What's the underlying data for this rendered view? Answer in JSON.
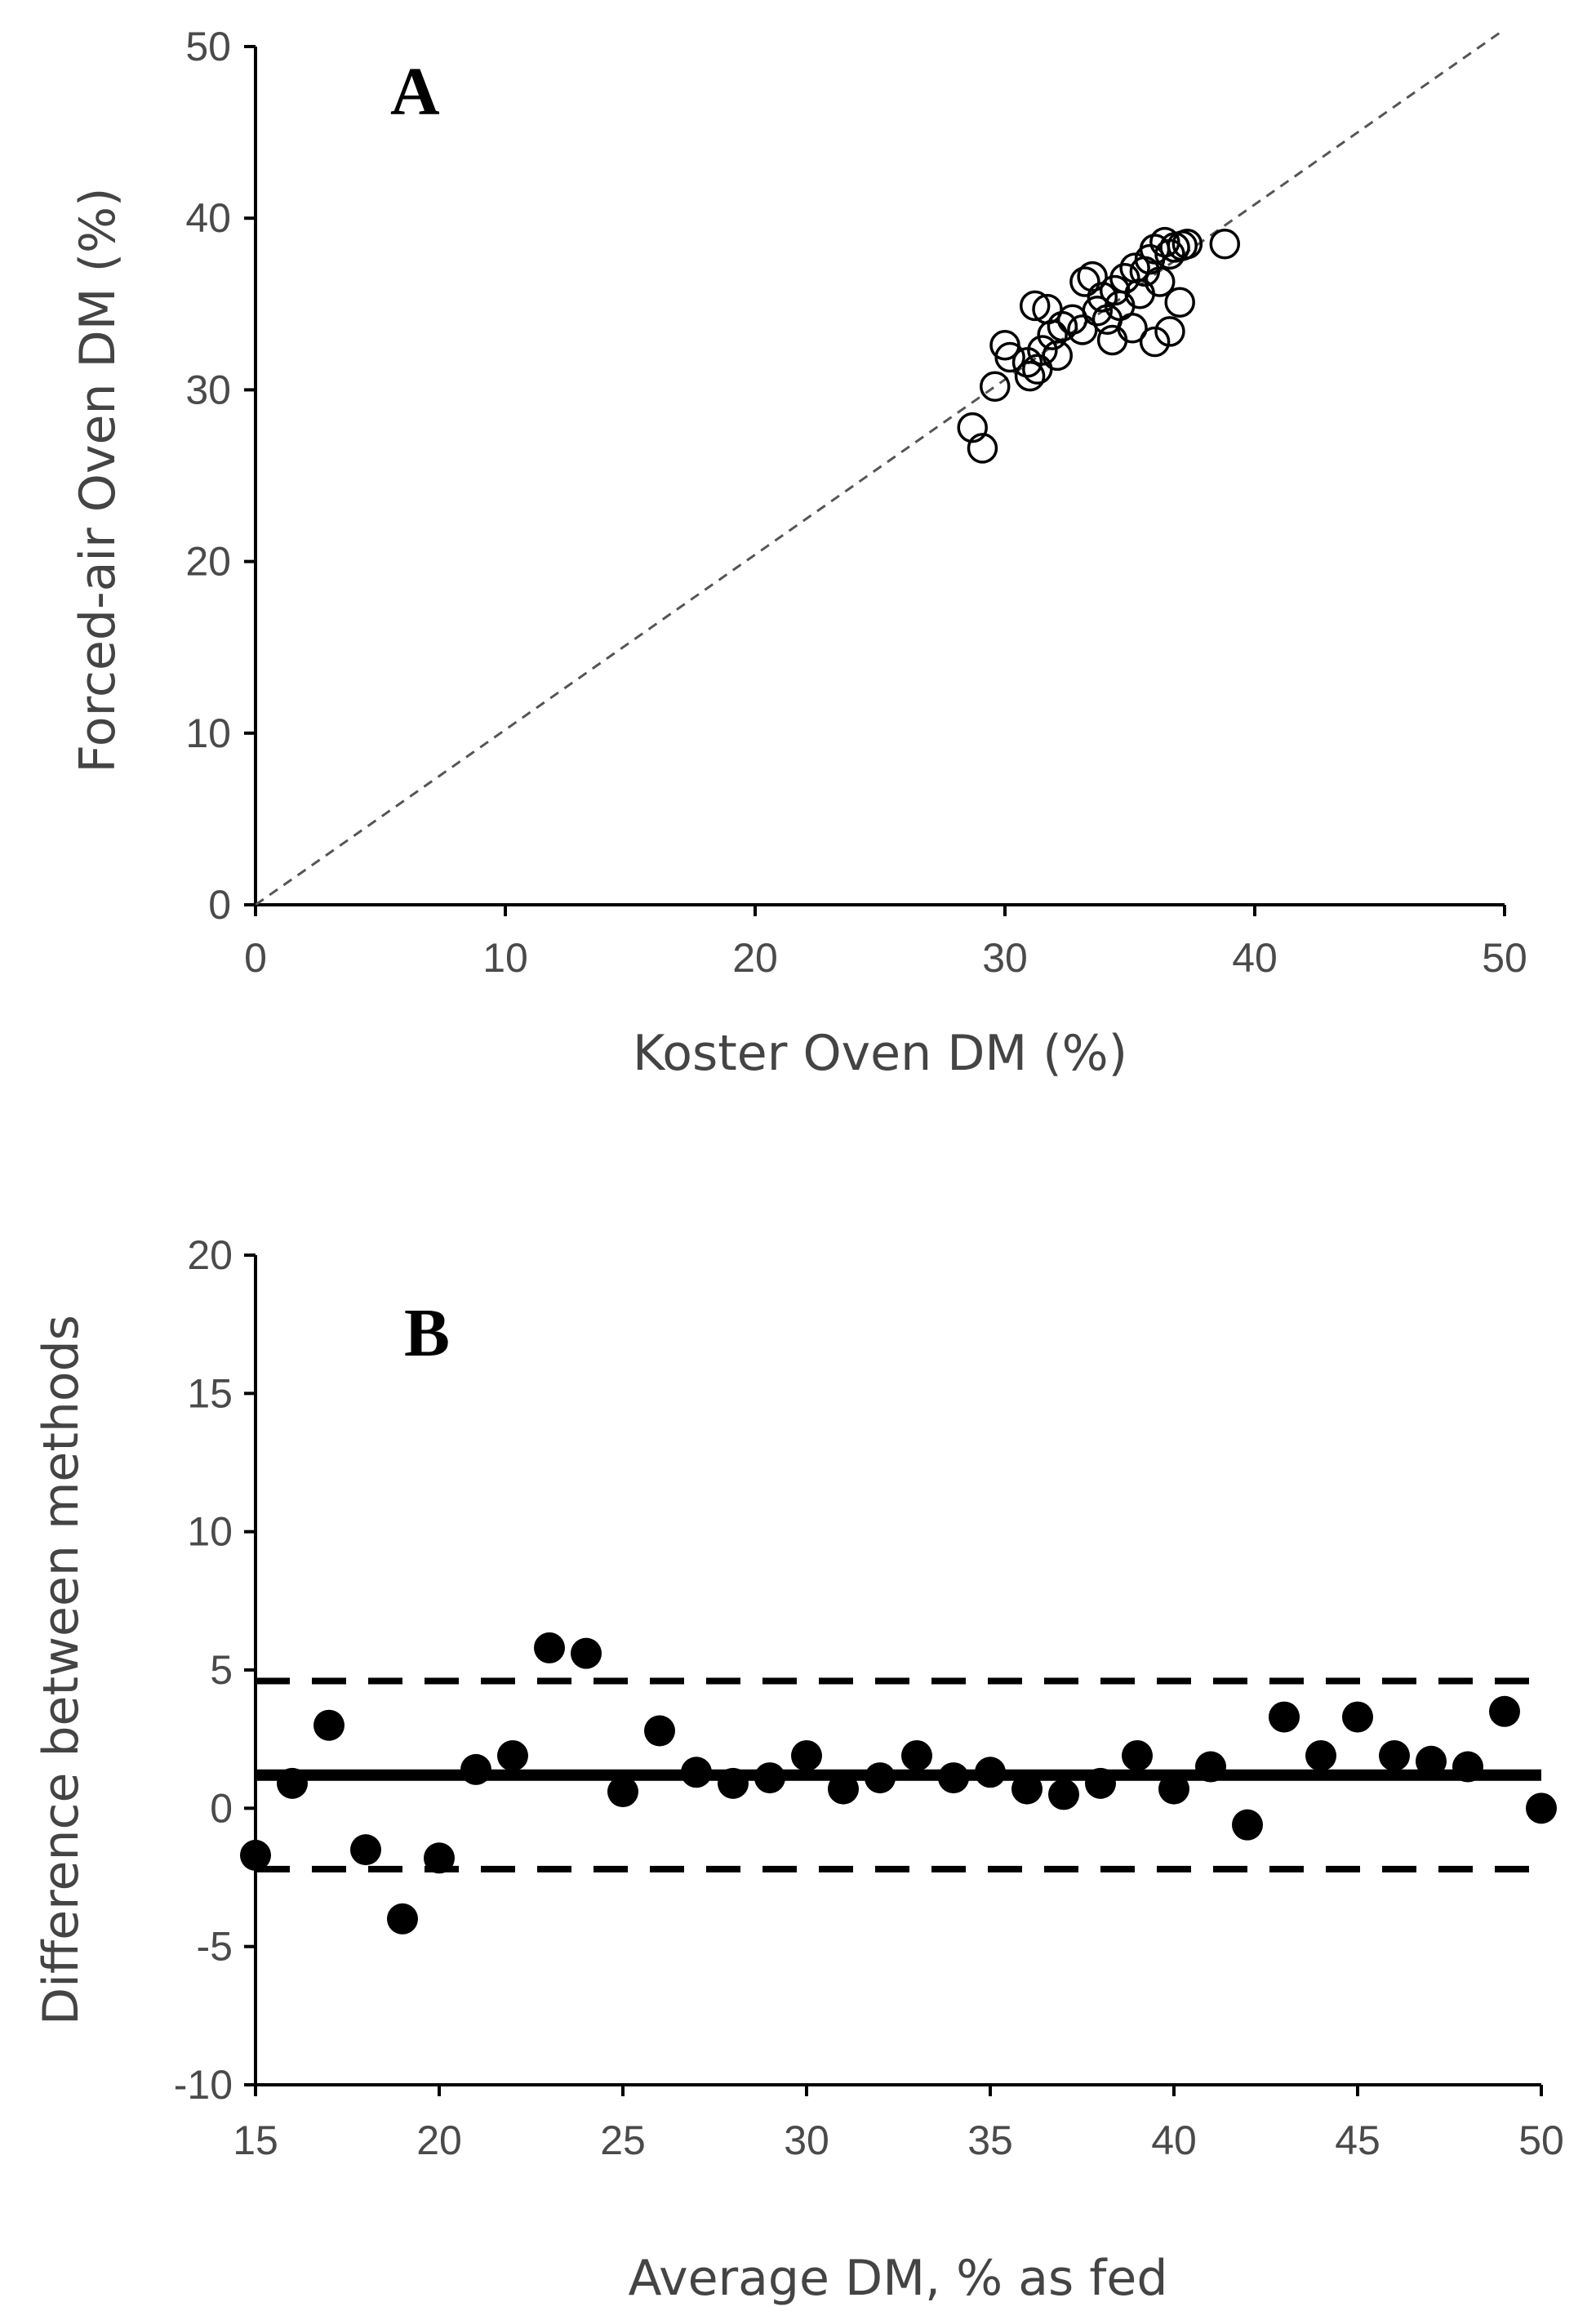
{
  "chart_data": [
    {
      "type": "scatter",
      "panel_label": "A",
      "xlabel": "Koster Oven DM (%)",
      "ylabel": "Forced-air Oven DM (%)",
      "xlim": [
        0,
        50
      ],
      "ylim": [
        0,
        50
      ],
      "xticks": [
        "0",
        "10",
        "20",
        "30",
        "40",
        "50"
      ],
      "yticks": [
        "0",
        "10",
        "20",
        "30",
        "40",
        "50"
      ],
      "marker": "open-circle",
      "reference_line": {
        "label": "1:1 line",
        "style": "dashed",
        "from": [
          0,
          0
        ],
        "to": [
          50,
          51
        ]
      },
      "points": [
        [
          28.7,
          27.8
        ],
        [
          29.1,
          26.6
        ],
        [
          29.6,
          30.2
        ],
        [
          30.0,
          32.6
        ],
        [
          30.2,
          31.9
        ],
        [
          30.9,
          31.6
        ],
        [
          31.0,
          30.8
        ],
        [
          31.2,
          34.9
        ],
        [
          31.3,
          31.2
        ],
        [
          31.5,
          32.3
        ],
        [
          31.7,
          34.7
        ],
        [
          31.9,
          33.2
        ],
        [
          32.1,
          32.0
        ],
        [
          32.3,
          33.7
        ],
        [
          32.7,
          34.1
        ],
        [
          33.1,
          33.5
        ],
        [
          33.2,
          36.3
        ],
        [
          33.5,
          36.6
        ],
        [
          33.7,
          34.6
        ],
        [
          33.9,
          35.4
        ],
        [
          34.1,
          34.1
        ],
        [
          34.3,
          32.9
        ],
        [
          34.4,
          35.8
        ],
        [
          34.6,
          34.9
        ],
        [
          34.8,
          36.5
        ],
        [
          35.1,
          33.6
        ],
        [
          35.2,
          37.1
        ],
        [
          35.4,
          35.6
        ],
        [
          35.6,
          36.9
        ],
        [
          35.8,
          37.6
        ],
        [
          36.0,
          32.8
        ],
        [
          36.0,
          38.2
        ],
        [
          36.2,
          36.3
        ],
        [
          36.4,
          38.6
        ],
        [
          36.6,
          33.4
        ],
        [
          36.6,
          37.9
        ],
        [
          36.8,
          38.3
        ],
        [
          37.0,
          35.1
        ],
        [
          37.1,
          38.4
        ],
        [
          37.3,
          38.5
        ],
        [
          38.8,
          38.5
        ]
      ]
    },
    {
      "type": "scatter",
      "panel_label": "B",
      "xlabel": "Average DM, % as fed",
      "ylabel": "Difference between methods",
      "xlim": [
        15,
        50
      ],
      "ylim": [
        -10,
        20
      ],
      "xticks": [
        "15",
        "20",
        "25",
        "30",
        "35",
        "40",
        "45",
        "50"
      ],
      "yticks": [
        "-10",
        "-5",
        "0",
        "5",
        "10",
        "15",
        "20"
      ],
      "marker": "filled-circle",
      "mean_line": {
        "label": "mean difference",
        "style": "solid",
        "value": 1.2
      },
      "limits_of_agreement": {
        "style": "dashed",
        "upper": 4.6,
        "lower": -2.2
      },
      "x": [
        15,
        16,
        17,
        18,
        19,
        20,
        21,
        22,
        23,
        24,
        25,
        26,
        27,
        28,
        29,
        30,
        31,
        32,
        33,
        34,
        35,
        36,
        37,
        38,
        39,
        40,
        41,
        42,
        43,
        44,
        45,
        46,
        47,
        48,
        49,
        50
      ],
      "y": [
        -1.7,
        0.9,
        3.0,
        -1.5,
        -4.0,
        -1.8,
        1.4,
        1.9,
        5.8,
        5.6,
        0.6,
        2.8,
        1.3,
        0.9,
        1.1,
        1.9,
        0.7,
        1.1,
        1.9,
        1.1,
        1.3,
        0.7,
        0.5,
        0.9,
        1.9,
        0.7,
        1.5,
        -0.6,
        3.3,
        1.9,
        3.3,
        1.9,
        1.7,
        1.5,
        3.5,
        0.0
      ]
    }
  ]
}
